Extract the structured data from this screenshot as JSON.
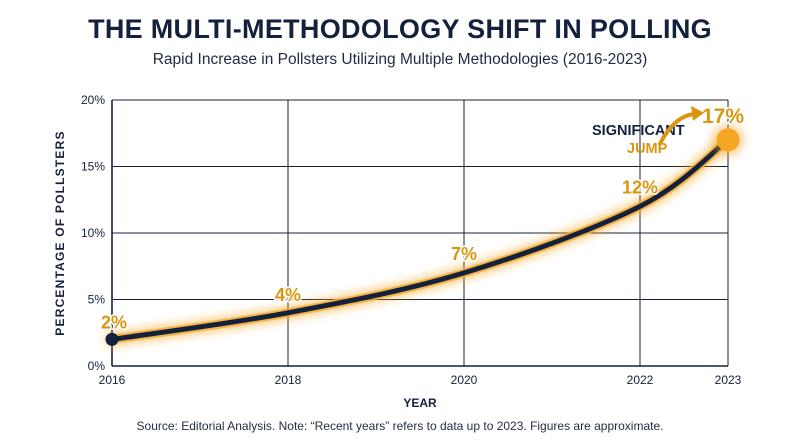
{
  "title": "THE MULTI-METHODOLOGY SHIFT IN POLLING",
  "subtitle": "Rapid Increase in Pollsters Utilizing Multiple Methodologies (2016-2023)",
  "source": "Source: Editorial Analysis. Note: “Recent years” refers to data up to 2023. Figures are approximate.",
  "colors": {
    "navy": "#14213d",
    "gold": "#d9960f",
    "glow": "#f5a623",
    "grid": "#14213d"
  },
  "chart_data": {
    "type": "line",
    "xlabel": "YEAR",
    "ylabel": "PERCENTAGE OF POLLSTERS",
    "x_ticks": [
      "2016",
      "2018",
      "2020",
      "2022",
      "2023"
    ],
    "y_ticks": [
      "0%",
      "5%",
      "10%",
      "15%",
      "20%"
    ],
    "xlim": [
      2016,
      2023
    ],
    "ylim": [
      0,
      20
    ],
    "grid": true,
    "series": [
      {
        "x": [
          2016,
          2018,
          2020,
          2022,
          2023
        ],
        "y": [
          2,
          4,
          7,
          12,
          17
        ],
        "labels": [
          "2%",
          "4%",
          "7%",
          "12%",
          "17%"
        ]
      }
    ],
    "annotation": {
      "line1": "SIGNIFICANT",
      "line2": "JUMP",
      "x": 2023,
      "y": 17
    }
  }
}
